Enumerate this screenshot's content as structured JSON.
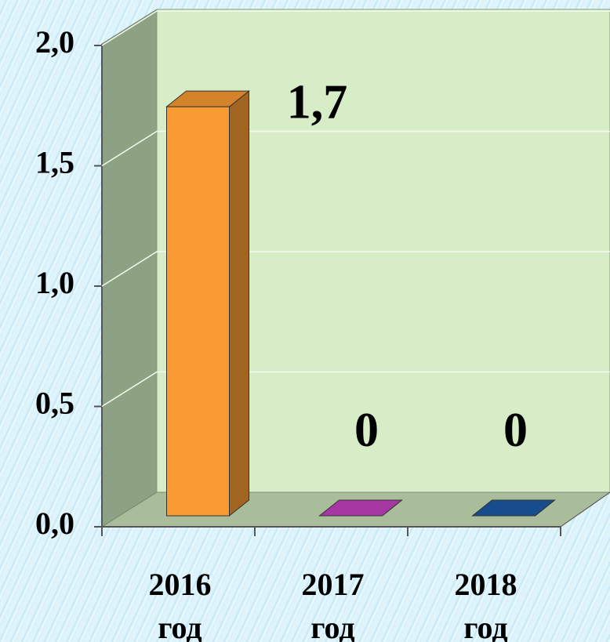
{
  "chart_data": {
    "type": "bar3d",
    "categories": [
      "2016 год",
      "2017 год",
      "2018 год"
    ],
    "values": [
      1.7,
      0,
      0
    ],
    "value_labels": [
      "1,7",
      "0",
      "0"
    ],
    "colors": [
      "#f99a32",
      "#c23fbf",
      "#1b5aa6"
    ],
    "ylim": [
      0,
      2
    ],
    "yticks": [
      {
        "value": 0,
        "label": "0,0"
      },
      {
        "value": 0.5,
        "label": "0,5"
      },
      {
        "value": 1,
        "label": "1,0"
      },
      {
        "value": 1.5,
        "label": "1,5"
      },
      {
        "value": 2,
        "label": "2,0"
      }
    ],
    "grid": true
  }
}
